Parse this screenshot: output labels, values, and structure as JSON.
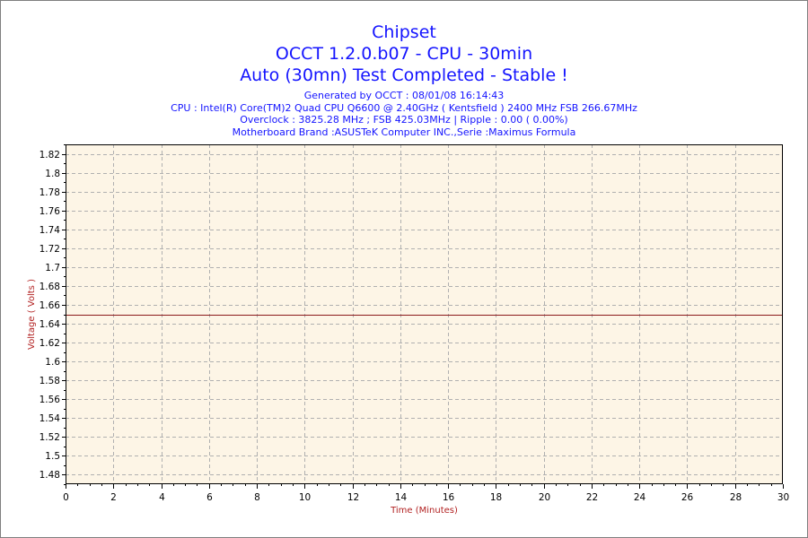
{
  "titles": {
    "line1": "Chipset",
    "line2": "OCCT 1.2.0.b07 - CPU - 30min",
    "line3": "Auto (30mn) Test Completed - Stable !",
    "info1": "Generated by OCCT : 08/01/08 16:14:43",
    "info2": "CPU : Intel(R) Core(TM)2 Quad CPU Q6600 @ 2.40GHz ( Kentsfield ) 2400 MHz FSB 266.67MHz",
    "info3": "Overclock : 3825.28 MHz ; FSB 425.03MHz | Ripple : 0.00 ( 0.00%)",
    "info4": "Motherboard Brand :ASUSTeK Computer INC.,Serie :Maximus Formula"
  },
  "chart_data": {
    "type": "line",
    "xlabel": "Time (Minutes)",
    "ylabel": "Voltage ( Volts )",
    "xlim": [
      0,
      30
    ],
    "ylim": [
      1.47,
      1.83
    ],
    "xticks": [
      0,
      2,
      4,
      6,
      8,
      10,
      12,
      14,
      16,
      18,
      20,
      22,
      24,
      26,
      28,
      30
    ],
    "yticks": [
      1.48,
      1.5,
      1.52,
      1.54,
      1.56,
      1.58,
      1.6,
      1.62,
      1.64,
      1.66,
      1.68,
      1.7,
      1.72,
      1.74,
      1.76,
      1.78,
      1.8,
      1.82
    ],
    "grid": true,
    "series": [
      {
        "x": [
          0,
          30
        ],
        "y": [
          1.65,
          1.65
        ]
      }
    ],
    "colors": {
      "plot_background": "#fdf5e6",
      "line": "#8b1a1a",
      "title": "#1414ff",
      "axis_title": "#b22222",
      "grid": "#b0b0b0"
    }
  }
}
